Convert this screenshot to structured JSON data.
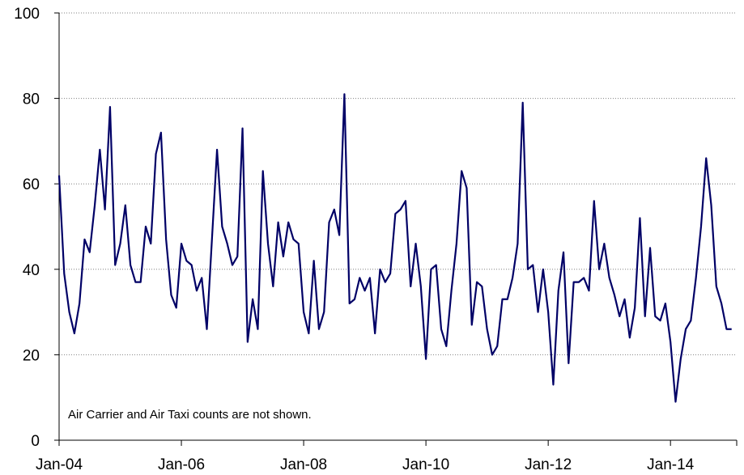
{
  "chart_data": {
    "type": "line",
    "title": "",
    "xlabel": "",
    "ylabel": "",
    "ylim": [
      0,
      100
    ],
    "y_ticks": [
      0,
      20,
      40,
      60,
      80,
      100
    ],
    "x_tick_labels": [
      "Jan-04",
      "Jan-06",
      "Jan-08",
      "Jan-10",
      "Jan-12",
      "Jan-14"
    ],
    "x_start": "2004-01",
    "grid": "horizontal dotted",
    "annotation": "Air Carrier and Air Taxi counts are not shown.",
    "colors": {
      "line": "#000066",
      "axis": "#000000",
      "grid": "#808080"
    },
    "series": [
      {
        "values": [
          62,
          39,
          30,
          25,
          32,
          47,
          44,
          55,
          68,
          54,
          78,
          41,
          46,
          55,
          41,
          37,
          37,
          50,
          46,
          67,
          72,
          47,
          34,
          31,
          46,
          42,
          41,
          35,
          38,
          26,
          47,
          68,
          50,
          46,
          41,
          43,
          73,
          23,
          33,
          26,
          63,
          46,
          36,
          51,
          43,
          51,
          47,
          46,
          30,
          25,
          42,
          26,
          30,
          51,
          54,
          48,
          81,
          32,
          33,
          38,
          35,
          38,
          25,
          40,
          37,
          39,
          53,
          54,
          56,
          36,
          46,
          36,
          19,
          40,
          41,
          26,
          22,
          35,
          46,
          63,
          59,
          27,
          37,
          36,
          26,
          20,
          22,
          33,
          33,
          38,
          46,
          79,
          40,
          41,
          30,
          40,
          30,
          13,
          35,
          44,
          18,
          37,
          37,
          38,
          35,
          56,
          40,
          46,
          38,
          34,
          29,
          33,
          24,
          31,
          52,
          29,
          45,
          29,
          28,
          32,
          23,
          9,
          19,
          26,
          28,
          38,
          50,
          66,
          55,
          36,
          32,
          26,
          26
        ]
      }
    ]
  }
}
